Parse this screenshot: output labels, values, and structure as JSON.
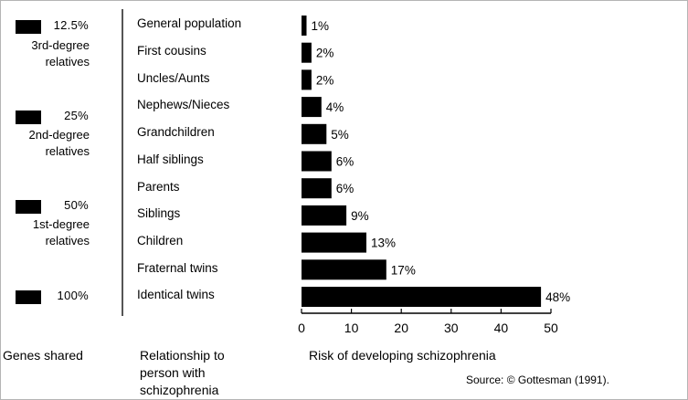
{
  "genes_shared": {
    "groups": [
      {
        "pct": "12.5%",
        "line1": "3rd-degree",
        "line2": "relatives"
      },
      {
        "pct": "25%",
        "line1": "2nd-degree",
        "line2": "relatives"
      },
      {
        "pct": "50%",
        "line1": "1st-degree",
        "line2": "relatives"
      },
      {
        "pct": "100%"
      }
    ]
  },
  "footer": {
    "genes_label": "Genes shared",
    "relationship_label": [
      "Relationship to",
      "person with",
      "schizophrenia"
    ],
    "risk_label": "Risk of developing schizophrenia",
    "source": "Source:  © Gottesman (1991)."
  },
  "chart_data": {
    "type": "bar",
    "orientation": "horizontal",
    "categories": [
      "General population",
      "First cousins",
      "Uncles/Aunts",
      "Nephews/Nieces",
      "Grandchildren",
      "Half siblings",
      "Parents",
      "Siblings",
      "Children",
      "Fraternal twins",
      "Identical twins"
    ],
    "values": [
      1,
      2,
      2,
      4,
      5,
      6,
      6,
      9,
      13,
      17,
      48
    ],
    "data_labels": [
      "1%",
      "2%",
      "2%",
      "4%",
      "5%",
      "6%",
      "6%",
      "9%",
      "13%",
      "17%",
      "48%"
    ],
    "xlabel": "Risk of developing schizophrenia",
    "ylabel": "Relationship to person with schizophrenia",
    "xlim": [
      0,
      50
    ],
    "xticks": [
      "0",
      "10",
      "20",
      "30",
      "40",
      "50"
    ],
    "grid": false,
    "colors": {
      "bar": "#000000",
      "axis": "#000000",
      "text": "#000000"
    }
  }
}
